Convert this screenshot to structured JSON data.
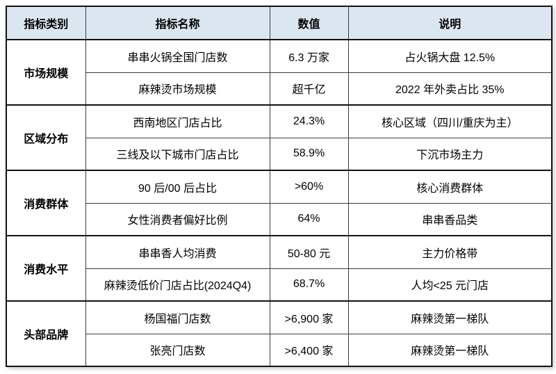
{
  "colors": {
    "header_background": "#dce6f1",
    "border_heavy": "#111111",
    "border_light": "#3a3a3a",
    "text": "#000000",
    "page_background": "#ffffff"
  },
  "table": {
    "headers": {
      "category": "指标类别",
      "name": "指标名称",
      "value": "数值",
      "note": "说明"
    },
    "groups": [
      {
        "category": "市场规模",
        "rows": [
          {
            "name": "串串火锅全国门店数",
            "value": "6.3 万家",
            "note": "占火锅大盘 12.5%"
          },
          {
            "name": "麻辣烫市场规模",
            "value": "超千亿",
            "note": "2022 年外卖占比 35%"
          }
        ]
      },
      {
        "category": "区域分布",
        "rows": [
          {
            "name": "西南地区门店占比",
            "value": "24.3%",
            "note": "核心区域（四川/重庆为主）"
          },
          {
            "name": "三线及以下城市门店占比",
            "value": "58.9%",
            "note": "下沉市场主力"
          }
        ]
      },
      {
        "category": "消费群体",
        "rows": [
          {
            "name": "90 后/00 后占比",
            "value": ">60%",
            "note": "核心消费群体"
          },
          {
            "name": "女性消费者偏好比例",
            "value": "64%",
            "note": "串串香品类"
          }
        ]
      },
      {
        "category": "消费水平",
        "rows": [
          {
            "name": "串串香人均消费",
            "value": "50-80 元",
            "note": "主力价格带"
          },
          {
            "name": "麻辣烫低价门店占比(2024Q4)",
            "value": "68.7%",
            "note": "人均<25 元门店"
          }
        ]
      },
      {
        "category": "头部品牌",
        "rows": [
          {
            "name": "杨国福门店数",
            "value": ">6,900 家",
            "note": "麻辣烫第一梯队"
          },
          {
            "name": "张亮门店数",
            "value": ">6,400 家",
            "note": "麻辣烫第一梯队"
          }
        ]
      }
    ]
  }
}
